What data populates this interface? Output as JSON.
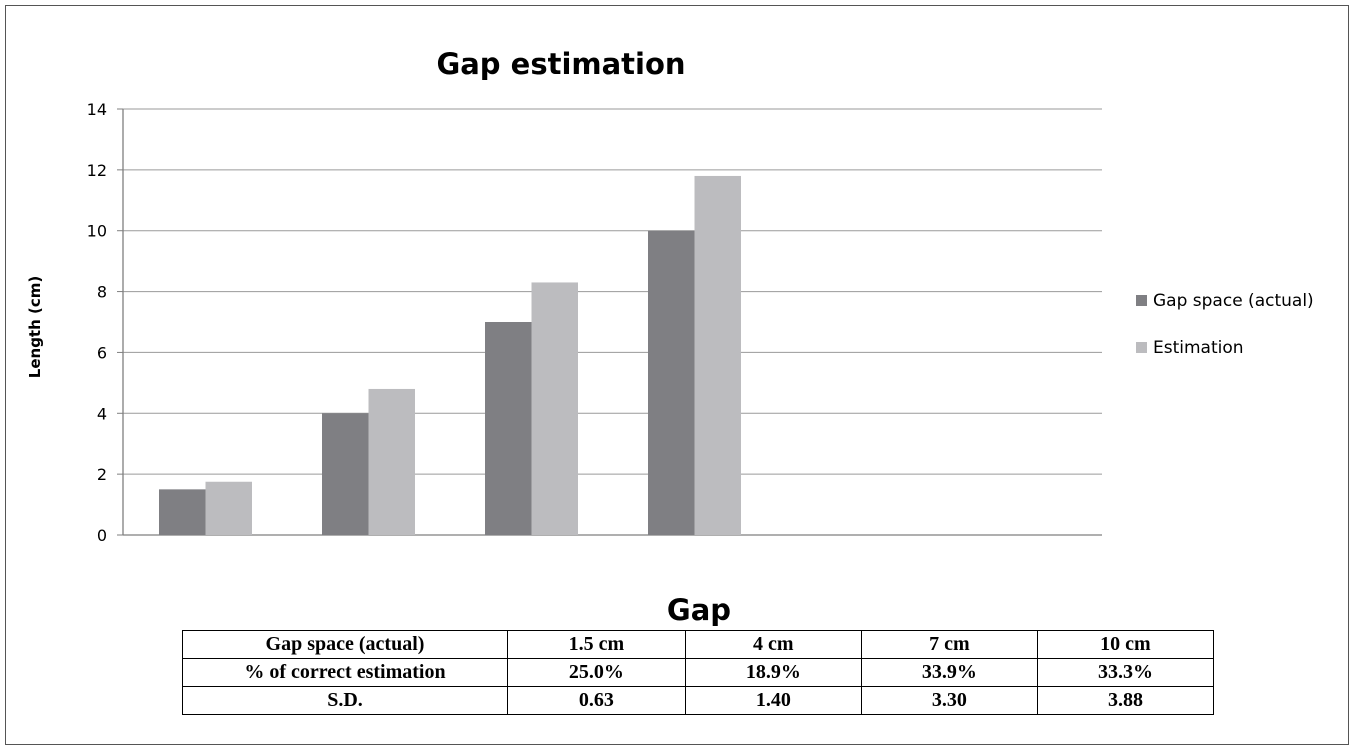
{
  "chart_data": {
    "type": "bar",
    "title": "Gap estimation",
    "xlabel": "Gap",
    "ylabel": "Length (cm)",
    "ylim": [
      0,
      14
    ],
    "yticks": [
      0,
      2,
      4,
      6,
      8,
      10,
      12,
      14
    ],
    "grid": true,
    "legend_position": "right",
    "categories": [
      "1.5 cm",
      "4 cm",
      "7 cm",
      "10 cm"
    ],
    "series": [
      {
        "name": "Gap space (actual)",
        "color": "#7f7f83",
        "values": [
          1.5,
          4,
          7,
          10
        ]
      },
      {
        "name": "Estimation",
        "color": "#bcbcbf",
        "values": [
          1.75,
          4.8,
          8.3,
          11.8
        ]
      }
    ]
  },
  "table": {
    "rows": [
      {
        "label": "Gap space (actual)",
        "cells": [
          "1.5 cm",
          "4 cm",
          "7 cm",
          "10 cm"
        ]
      },
      {
        "label": "% of correct estimation",
        "cells": [
          "25.0%",
          "18.9%",
          "33.9%",
          "33.3%"
        ]
      },
      {
        "label": "S.D.",
        "cells": [
          "0.63",
          "1.40",
          "3.30",
          "3.88"
        ]
      }
    ]
  }
}
